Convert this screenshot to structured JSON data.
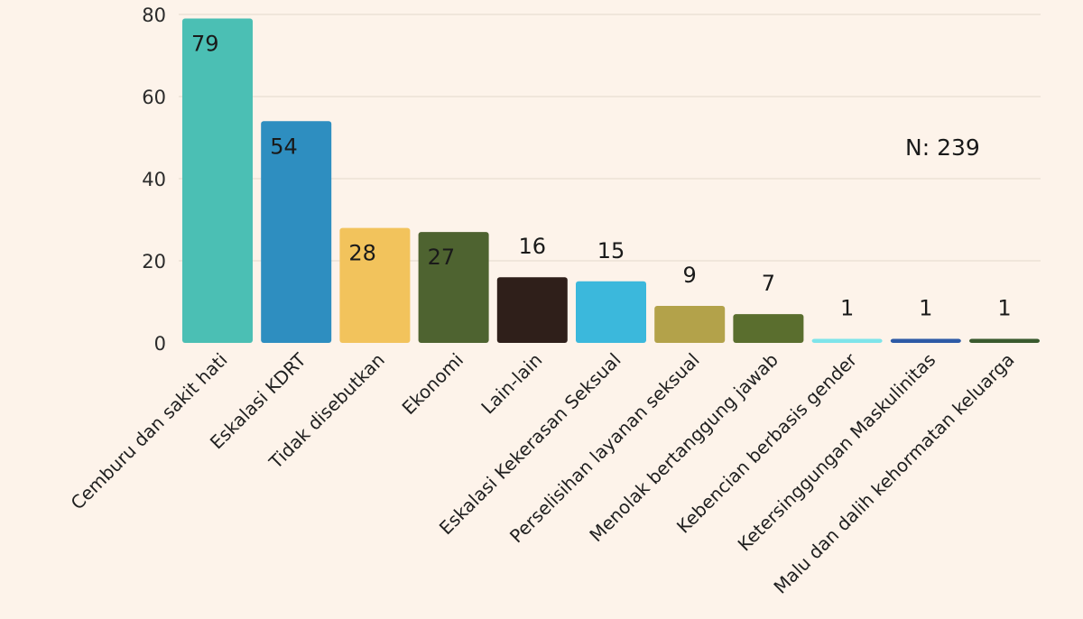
{
  "chart_data": {
    "type": "bar",
    "title": "",
    "xlabel": "",
    "ylabel": "",
    "ylim": [
      0,
      80
    ],
    "yticks": [
      0,
      20,
      40,
      60,
      80
    ],
    "grid": "horizontal",
    "categories": [
      "Cemburu dan sakit hati",
      "Eskalasi KDRT",
      "Tidak disebutkan",
      "Ekonomi",
      "Lain-lain",
      "Eskalasi Kekerasan Seksual",
      "Perselisihan layanan seksual",
      "Menolak bertanggung jawab",
      "Kebencian berbasis gender",
      "Ketersinggungan Maskulinitas",
      "Malu dan dalih kehormatan keluarga"
    ],
    "values": [
      79,
      54,
      28,
      27,
      16,
      15,
      9,
      7,
      1,
      1,
      1
    ],
    "value_labels": [
      "79",
      "54",
      "28",
      "27",
      "16",
      "15",
      "9",
      "7",
      "1",
      "1",
      "1"
    ],
    "colors": [
      "#4bbfb4",
      "#2e8ec0",
      "#f2c35c",
      "#4e6330",
      "#2f1f1a",
      "#3bb8dc",
      "#b3a24a",
      "#5a6e2e",
      "#7ee4ea",
      "#2d5aa6",
      "#3a5a2e"
    ],
    "annotation": "N: 239",
    "colors_meta": {
      "background": "#fdf3ea",
      "gridline": "#e4d8cc",
      "text": "#1a1a1a"
    }
  }
}
